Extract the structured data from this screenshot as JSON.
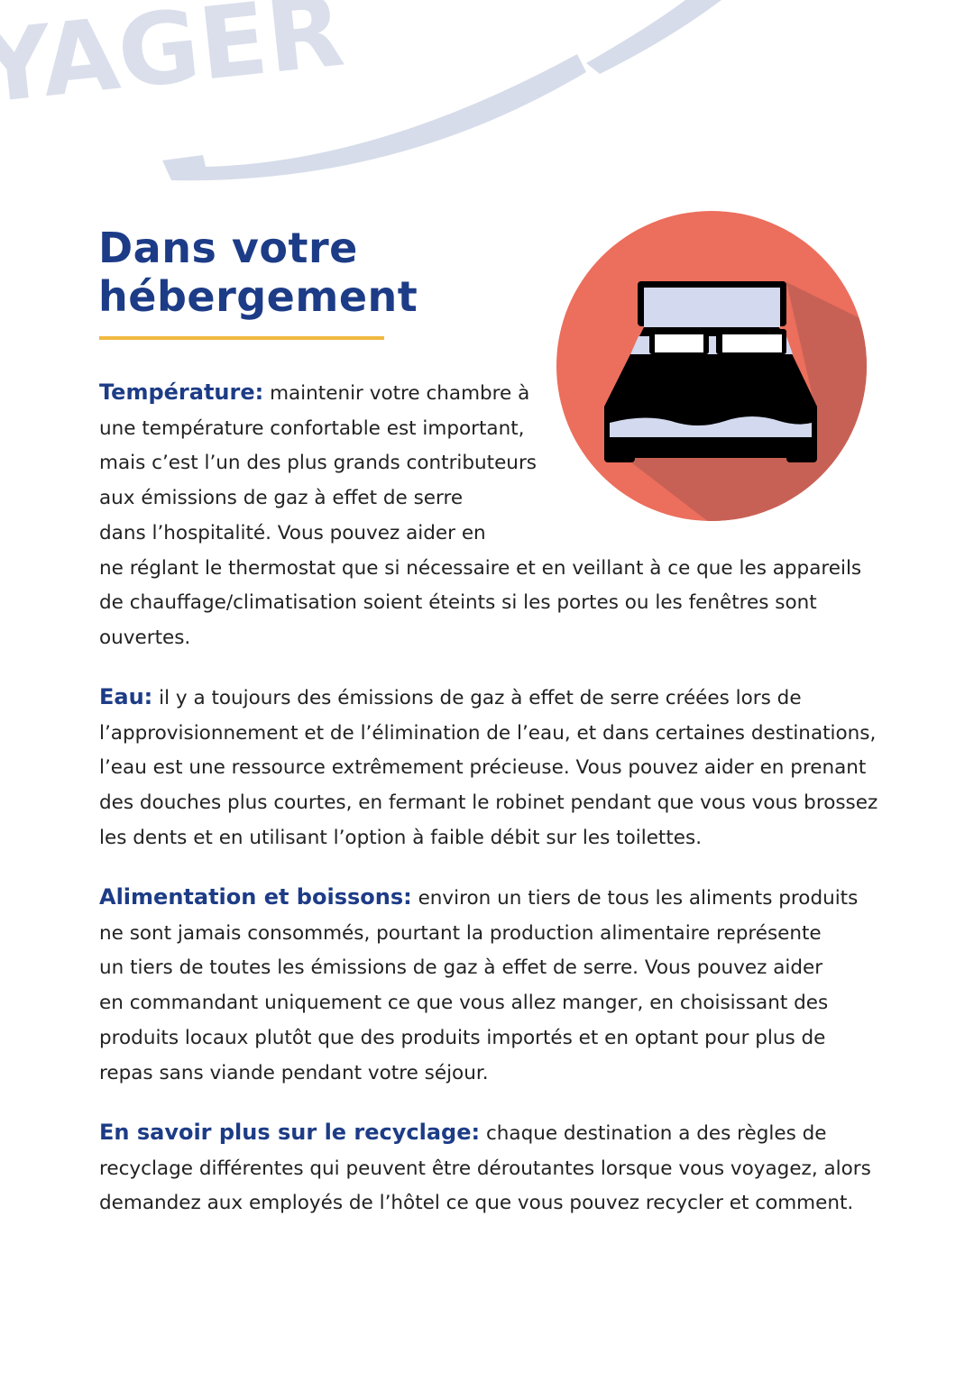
{
  "watermark": {
    "text": "VOYAGER",
    "color": "#d6dce9"
  },
  "page_title": {
    "line1": "Dans votre",
    "line2": "hébergement"
  },
  "colors": {
    "title": "#1d3c87",
    "rule": "#f0b93f",
    "icon_circle": "#ec6e5c",
    "icon_shadow": "#c86155",
    "bed": "#000000",
    "bed_light": "#d3d9ee"
  },
  "icon": {
    "name": "bed-icon"
  },
  "paragraphs": [
    {
      "label": "Température:",
      "lines": [
        " maintenir votre chambre à",
        "une température confortable est important,",
        "mais c’est l’un des plus grands contributeurs",
        "aux émissions de gaz à effet de serre",
        "dans l’hospitalité. Vous pouvez aider en",
        "ne réglant le thermostat que si nécessaire et en veillant à ce que les appareils",
        "de chauffage/climatisation soient éteints si les portes ou les fenêtres sont",
        "ouvertes."
      ]
    },
    {
      "label": "Eau:",
      "lines": [
        " il y a toujours des émissions de gaz à effet de serre créées lors de",
        "l’approvisionnement et de l’élimination de l’eau, et dans certaines destinations,",
        "l’eau est une ressource extrêmement précieuse. Vous pouvez aider en prenant",
        "des douches plus courtes, en fermant le robinet pendant que vous vous brossez",
        "les dents et en utilisant l’option à faible débit sur les toilettes."
      ]
    },
    {
      "label": "Alimentation et boissons:",
      "lines": [
        " environ un tiers de tous les aliments produits",
        "ne sont jamais consommés, pourtant la production alimentaire représente",
        "un tiers de toutes les émissions de gaz à effet de serre. Vous pouvez aider",
        "en commandant uniquement ce que vous allez manger, en choisissant des",
        "produits locaux plutôt que des produits importés et en optant pour plus de",
        "repas sans viande pendant votre séjour."
      ]
    },
    {
      "label": "En savoir plus sur le recyclage:",
      "lines": [
        " chaque destination a des règles de",
        "recyclage différentes qui peuvent être déroutantes lorsque vous voyagez, alors",
        "demandez aux employés de l’hôtel ce que vous pouvez recycler et comment."
      ]
    }
  ]
}
